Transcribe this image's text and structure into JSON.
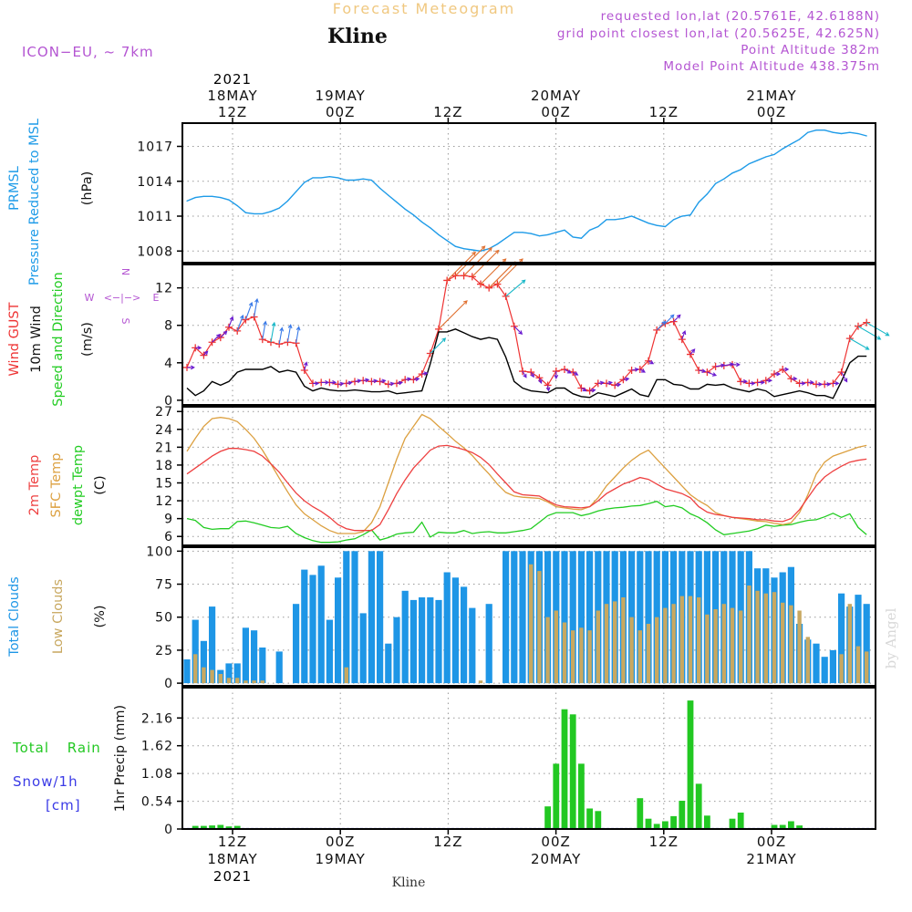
{
  "header": {
    "title": "Kline",
    "subtitle": "Forecast Meteogram",
    "model": "ICON−EU, ~ 7km",
    "requested": "requested lon,lat (20.5761E, 42.6188N)",
    "gridpoint": "grid point closest lon,lat (20.5625E, 42.625N)",
    "point_alt": "Point Altitude 382m",
    "model_alt": "Model Point Altitude 438.375m",
    "footer": "Kline",
    "credit": "by Angel"
  },
  "colors": {
    "pressure": "#1e9be8",
    "gust": "#ee3333",
    "wind": "#000000",
    "temp2m": "#ee4040",
    "sfc": "#dca040",
    "dewpt": "#22cc22",
    "total_cloud": "#1e96e6",
    "low_cloud": "#c8a860",
    "rain": "#22c822",
    "snow": "#3a3ae6",
    "purple": "#b455d2",
    "title_orange": "#f0c880"
  },
  "time_axis": {
    "top_hour": [
      "12Z",
      "00Z",
      "12Z",
      "00Z",
      "12Z",
      "00Z"
    ],
    "top_date": [
      "18MAY",
      "19MAY",
      "20MAY",
      "21MAY"
    ],
    "top_year": "2021",
    "bottom_hour": [
      "12Z",
      "00Z",
      "12Z",
      "00Z",
      "12Z",
      "00Z"
    ],
    "bottom_date": [
      "18MAY",
      "19MAY",
      "20MAY",
      "21MAY"
    ],
    "bottom_year": "2021"
  },
  "chart_data": [
    {
      "type": "line",
      "panel": "pressure",
      "ylabel_lines": [
        "PRMSL",
        "Pressure Reduced to MSL",
        "(hPa)"
      ],
      "ylim": [
        1007,
        1019
      ],
      "yticks": [
        1008,
        1011,
        1014,
        1017
      ],
      "series": [
        {
          "name": "PRMSL",
          "values": [
            1012.3,
            1012.6,
            1012.7,
            1012.7,
            1012.6,
            1012.4,
            1011.9,
            1011.3,
            1011.2,
            1011.2,
            1011.4,
            1011.7,
            1012.3,
            1013.1,
            1013.9,
            1014.3,
            1014.3,
            1014.4,
            1014.3,
            1014.1,
            1014.1,
            1014.2,
            1014.1,
            1013.4,
            1012.8,
            1012.2,
            1011.6,
            1011.1,
            1010.5,
            1010.0,
            1009.4,
            1008.9,
            1008.4,
            1008.2,
            1008.1,
            1008.0,
            1008.2,
            1008.6,
            1009.1,
            1009.6,
            1009.6,
            1009.5,
            1009.3,
            1009.4,
            1009.6,
            1009.8,
            1009.2,
            1009.1,
            1009.8,
            1010.1,
            1010.7,
            1010.7,
            1010.8,
            1011.0,
            1010.7,
            1010.4,
            1010.2,
            1010.1,
            1010.7,
            1011.0,
            1011.1,
            1012.2,
            1012.9,
            1013.8,
            1014.2,
            1014.7,
            1015.0,
            1015.5,
            1015.8,
            1016.1,
            1016.3,
            1016.8,
            1017.2,
            1017.6,
            1018.2,
            1018.4,
            1018.4,
            1018.2,
            1018.1,
            1018.2,
            1018.1,
            1017.9
          ]
        }
      ]
    },
    {
      "type": "line",
      "panel": "wind",
      "ylabel_lines": [
        "Wind GUST",
        "10m Wind",
        "Speed and Direction",
        "(m/s)"
      ],
      "compass": [
        "N",
        "W",
        "<−|−>",
        "E",
        "S"
      ],
      "ylim": [
        -0.5,
        14.5
      ],
      "yticks": [
        0,
        4,
        8,
        12
      ],
      "series": [
        {
          "name": "Wind GUST",
          "values": [
            3.5,
            5.6,
            4.8,
            6.2,
            6.7,
            7.8,
            7.4,
            8.6,
            8.9,
            6.5,
            6.2,
            6.0,
            6.2,
            6.1,
            3.2,
            1.8,
            1.9,
            1.9,
            1.7,
            1.8,
            2.0,
            2.1,
            2.0,
            2.0,
            1.7,
            1.8,
            2.2,
            2.2,
            2.8,
            5.0,
            7.6,
            12.8,
            13.3,
            13.3,
            13.2,
            12.4,
            12.0,
            12.4,
            11.1,
            7.9,
            3.1,
            3.0,
            2.4,
            1.6,
            3.1,
            3.3,
            3.0,
            1.3,
            1.0,
            1.8,
            1.8,
            1.6,
            2.2,
            3.2,
            3.3,
            4.2,
            7.5,
            8.2,
            8.4,
            6.5,
            4.9,
            3.2,
            3.0,
            3.6,
            3.7,
            3.8,
            2.0,
            1.8,
            1.9,
            2.1,
            2.8,
            3.3,
            2.3,
            1.8,
            1.9,
            1.7,
            1.7,
            1.8,
            3.0,
            6.6,
            7.9,
            8.3
          ]
        },
        {
          "name": "10m Wind",
          "values": [
            1.3,
            0.5,
            1.0,
            2.0,
            1.6,
            2.0,
            3.0,
            3.3,
            3.3,
            3.3,
            3.6,
            3.0,
            3.2,
            3.0,
            1.5,
            1.0,
            1.3,
            1.1,
            1.0,
            1.0,
            1.1,
            1.0,
            0.9,
            0.9,
            1.0,
            0.7,
            0.8,
            0.9,
            1.0,
            3.9,
            7.3,
            7.3,
            7.6,
            7.2,
            6.8,
            6.5,
            6.7,
            6.5,
            4.6,
            2.0,
            1.3,
            1.0,
            0.9,
            0.8,
            1.3,
            1.3,
            0.7,
            0.4,
            0.3,
            0.8,
            0.6,
            0.4,
            0.8,
            1.2,
            0.6,
            0.4,
            2.2,
            2.2,
            1.7,
            1.6,
            1.2,
            1.2,
            1.7,
            1.6,
            1.7,
            1.3,
            1.1,
            0.9,
            1.2,
            1.0,
            0.4,
            0.6,
            0.8,
            1.0,
            0.8,
            0.5,
            0.5,
            0.2,
            2.0,
            4.0,
            4.7,
            4.7
          ]
        }
      ],
      "wind_dir_from_deg": [
        270,
        270,
        225,
        225,
        225,
        200,
        200,
        200,
        190,
        190,
        190,
        190,
        190,
        190,
        195,
        270,
        270,
        270,
        260,
        260,
        260,
        260,
        260,
        260,
        260,
        260,
        260,
        260,
        260,
        225,
        225,
        225,
        225,
        225,
        225,
        225,
        225,
        225,
        230,
        315,
        330,
        330,
        340,
        350,
        0,
        300,
        300,
        300,
        260,
        260,
        260,
        260,
        260,
        260,
        300,
        300,
        225,
        225,
        225,
        200,
        220,
        280,
        290,
        260,
        260,
        270,
        270,
        270,
        270,
        270,
        270,
        270,
        270,
        270,
        270,
        270,
        270,
        270,
        330,
        300,
        300,
        300
      ]
    },
    {
      "type": "line",
      "panel": "temperature",
      "ylabel_lines": [
        "2m Temp",
        "SFC Temp",
        "dewpt Temp",
        "(C)"
      ],
      "ylim": [
        4.5,
        27.8
      ],
      "yticks": [
        6,
        9,
        12,
        15,
        18,
        21,
        24,
        27
      ],
      "series": [
        {
          "name": "2m Temp",
          "values": [
            16.5,
            17.5,
            18.5,
            19.5,
            20.3,
            20.8,
            20.8,
            20.6,
            20.3,
            19.5,
            18.2,
            16.8,
            15.0,
            13.3,
            12.0,
            11.0,
            10.2,
            9.2,
            8.0,
            7.3,
            7.0,
            7.0,
            7.0,
            8.0,
            10.5,
            13.2,
            15.5,
            17.5,
            19.0,
            20.5,
            21.2,
            21.3,
            21.0,
            20.6,
            20.1,
            19.3,
            18.1,
            16.5,
            15.0,
            13.5,
            13.0,
            12.9,
            12.8,
            12.0,
            11.3,
            11.0,
            10.9,
            10.8,
            11.0,
            12.0,
            13.2,
            14.0,
            14.8,
            15.3,
            15.9,
            15.6,
            14.8,
            14.0,
            13.6,
            13.2,
            12.5,
            11.0,
            10.1,
            9.7,
            9.5,
            9.2,
            9.1,
            9.0,
            8.8,
            8.8,
            8.6,
            8.5,
            9.0,
            10.5,
            12.5,
            14.5,
            16.0,
            17.0,
            17.8,
            18.5,
            18.8,
            19.0
          ]
        },
        {
          "name": "SFC Temp",
          "values": [
            20.3,
            22.5,
            24.5,
            25.8,
            26.0,
            25.8,
            25.3,
            24.0,
            22.5,
            20.5,
            18.2,
            15.8,
            13.5,
            11.3,
            9.8,
            8.8,
            7.8,
            7.0,
            6.5,
            6.5,
            6.5,
            6.8,
            8.3,
            11.0,
            15.0,
            19.0,
            22.5,
            24.5,
            26.5,
            25.8,
            24.5,
            23.3,
            22.0,
            20.9,
            19.6,
            18.0,
            16.5,
            14.8,
            13.4,
            12.8,
            12.6,
            12.5,
            12.4,
            11.8,
            11.0,
            10.8,
            10.6,
            10.5,
            11.0,
            12.5,
            14.5,
            16.0,
            17.5,
            18.8,
            19.8,
            20.5,
            19.0,
            17.5,
            16.0,
            14.5,
            13.0,
            12.0,
            11.2,
            10.0,
            9.5,
            9.2,
            9.0,
            8.8,
            8.6,
            8.5,
            8.2,
            8.0,
            8.3,
            10.0,
            13.0,
            16.5,
            18.5,
            19.5,
            20.0,
            20.5,
            21.0,
            21.3
          ]
        },
        {
          "name": "dewpt Temp",
          "values": [
            9.0,
            8.7,
            7.5,
            7.2,
            7.3,
            7.3,
            8.5,
            8.6,
            8.3,
            7.9,
            7.5,
            7.4,
            7.7,
            6.5,
            5.8,
            5.3,
            5.0,
            5.0,
            5.1,
            5.4,
            5.6,
            6.3,
            7.1,
            5.4,
            5.8,
            6.4,
            6.6,
            6.7,
            8.4,
            5.9,
            6.7,
            6.6,
            6.6,
            7.0,
            6.5,
            6.7,
            6.8,
            6.6,
            6.6,
            6.8,
            7.0,
            7.3,
            8.4,
            9.5,
            10.0,
            10.0,
            10.0,
            9.5,
            9.8,
            10.3,
            10.6,
            10.8,
            10.9,
            11.1,
            11.2,
            11.5,
            11.9,
            11.0,
            11.2,
            10.8,
            9.8,
            9.2,
            8.3,
            7.1,
            6.3,
            6.5,
            6.7,
            6.9,
            7.3,
            7.9,
            7.7,
            7.9,
            8.0,
            8.4,
            8.7,
            8.8,
            9.3,
            9.9,
            9.2,
            9.8,
            7.5,
            6.3
          ]
        }
      ]
    },
    {
      "type": "bar",
      "panel": "clouds",
      "ylabel_lines": [
        "Total Clouds",
        "Low Clouds",
        "(%)"
      ],
      "ylim": [
        -2,
        103
      ],
      "yticks": [
        0,
        25,
        50,
        75,
        100
      ],
      "series": [
        {
          "name": "Total Clouds",
          "values": [
            18,
            48,
            32,
            58,
            10,
            15,
            15,
            42,
            40,
            27,
            0,
            24,
            0,
            60,
            86,
            82,
            89,
            48,
            80,
            100,
            100,
            53,
            100,
            100,
            30,
            50,
            70,
            63,
            65,
            65,
            63,
            84,
            80,
            73,
            57,
            0,
            60,
            0,
            100,
            100,
            100,
            100,
            100,
            100,
            100,
            100,
            100,
            100,
            100,
            100,
            100,
            100,
            100,
            100,
            100,
            100,
            100,
            100,
            100,
            100,
            100,
            100,
            100,
            100,
            100,
            100,
            100,
            100,
            87,
            87,
            80,
            84,
            88,
            45,
            33,
            30,
            20,
            25,
            68,
            58,
            67,
            60
          ]
        },
        {
          "name": "Low Clouds",
          "values": [
            0,
            22,
            12,
            10,
            7,
            4,
            4,
            2,
            2,
            2,
            0,
            0,
            0,
            0,
            0,
            0,
            0,
            0,
            0,
            12,
            0,
            0,
            0,
            0,
            0,
            0,
            0,
            0,
            0,
            0,
            0,
            0,
            0,
            0,
            0,
            2,
            0,
            0,
            0,
            0,
            0,
            90,
            85,
            50,
            55,
            46,
            40,
            42,
            40,
            55,
            60,
            62,
            65,
            50,
            40,
            45,
            50,
            57,
            60,
            66,
            66,
            65,
            52,
            56,
            60,
            57,
            55,
            74,
            70,
            68,
            69,
            61,
            59,
            55,
            35,
            0,
            0,
            0,
            22,
            60,
            28,
            24
          ]
        }
      ]
    },
    {
      "type": "bar",
      "panel": "precip",
      "ylabel_lines": [
        "1hr Precip (mm)"
      ],
      "left_labels": [
        "Total Rain",
        "Snow/1h",
        "[cm]"
      ],
      "ylim": [
        0,
        2.75
      ],
      "yticks": [
        0,
        0.54,
        1.08,
        1.62,
        2.16
      ],
      "series": [
        {
          "name": "Total Rain",
          "values": [
            0,
            0.06,
            0.06,
            0.07,
            0.08,
            0.05,
            0.06,
            0,
            0,
            0,
            0,
            0,
            0,
            0,
            0,
            0,
            0,
            0,
            0,
            0,
            0,
            0,
            0,
            0,
            0,
            0,
            0,
            0,
            0,
            0,
            0,
            0,
            0,
            0,
            0,
            0,
            0,
            0,
            0,
            0,
            0,
            0,
            0,
            0.44,
            1.27,
            2.33,
            2.23,
            1.27,
            0.4,
            0.35,
            0,
            0,
            0,
            0,
            0.6,
            0.2,
            0.1,
            0.15,
            0.25,
            0.55,
            2.5,
            0.88,
            0.26,
            0,
            0,
            0.2,
            0.32,
            0,
            0,
            0,
            0.08,
            0.08,
            0.15,
            0.07,
            0,
            0,
            0,
            0,
            0,
            0,
            0,
            0
          ]
        },
        {
          "name": "Snow/1h",
          "values": [
            0,
            0,
            0,
            0,
            0,
            0,
            0,
            0,
            0,
            0,
            0,
            0,
            0,
            0,
            0,
            0,
            0,
            0,
            0,
            0,
            0,
            0,
            0,
            0,
            0,
            0,
            0,
            0,
            0,
            0,
            0,
            0,
            0,
            0,
            0,
            0,
            0,
            0,
            0,
            0,
            0,
            0,
            0,
            0,
            0,
            0,
            0,
            0,
            0,
            0,
            0,
            0,
            0,
            0,
            0,
            0,
            0,
            0,
            0,
            0,
            0,
            0,
            0,
            0,
            0,
            0,
            0,
            0,
            0,
            0,
            0,
            0,
            0,
            0,
            0,
            0,
            0,
            0,
            0,
            0,
            0,
            0
          ]
        }
      ]
    }
  ]
}
